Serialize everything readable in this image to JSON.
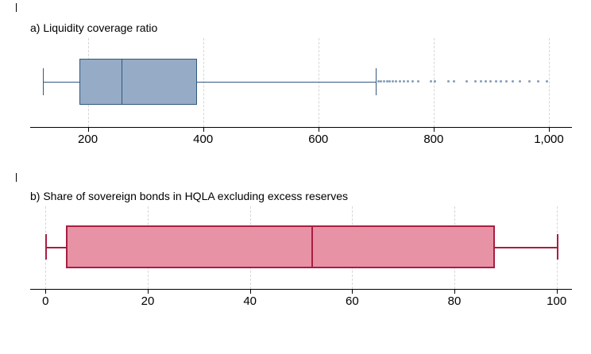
{
  "figure": {
    "background": "#ffffff",
    "grid_color": "#d6d6d6",
    "axis_color": "#000000"
  },
  "chart_data": [
    {
      "type": "boxplot",
      "orientation": "horizontal",
      "title": "a) Liquidity coverage ratio",
      "color_fill": "#96abc6",
      "color_stroke": "#31587f",
      "outlier_color": "#5b7ca3",
      "axis_range": [
        100,
        1040
      ],
      "ticks": [
        200,
        400,
        600,
        800,
        1000
      ],
      "tick_labels": [
        "200",
        "400",
        "600",
        "800",
        "1,000"
      ],
      "grid": true,
      "legend": false,
      "box": {
        "whisker_low": 122,
        "q1": 185,
        "median": 258,
        "q3": 390,
        "whisker_high": 700
      },
      "outliers": [
        704,
        709,
        714,
        719,
        724,
        729,
        735,
        741,
        748,
        756,
        764,
        773,
        796,
        802,
        826,
        836,
        858,
        872,
        882,
        890,
        899,
        908,
        917,
        926,
        937,
        950,
        966,
        982,
        997
      ]
    },
    {
      "type": "boxplot",
      "orientation": "horizontal",
      "title": "b) Share of sovereign bonds in HQLA excluding excess reserves",
      "color_fill": "#e892a5",
      "color_stroke": "#a81e42",
      "outlier_color": "#a81e42",
      "axis_range": [
        -3,
        103
      ],
      "ticks": [
        0,
        20,
        40,
        60,
        80,
        100
      ],
      "tick_labels": [
        "0",
        "20",
        "40",
        "60",
        "80",
        "100"
      ],
      "grid": true,
      "legend": false,
      "box": {
        "whisker_low": 0,
        "q1": 4,
        "median": 52,
        "q3": 88,
        "whisker_high": 100
      },
      "outliers": []
    }
  ]
}
